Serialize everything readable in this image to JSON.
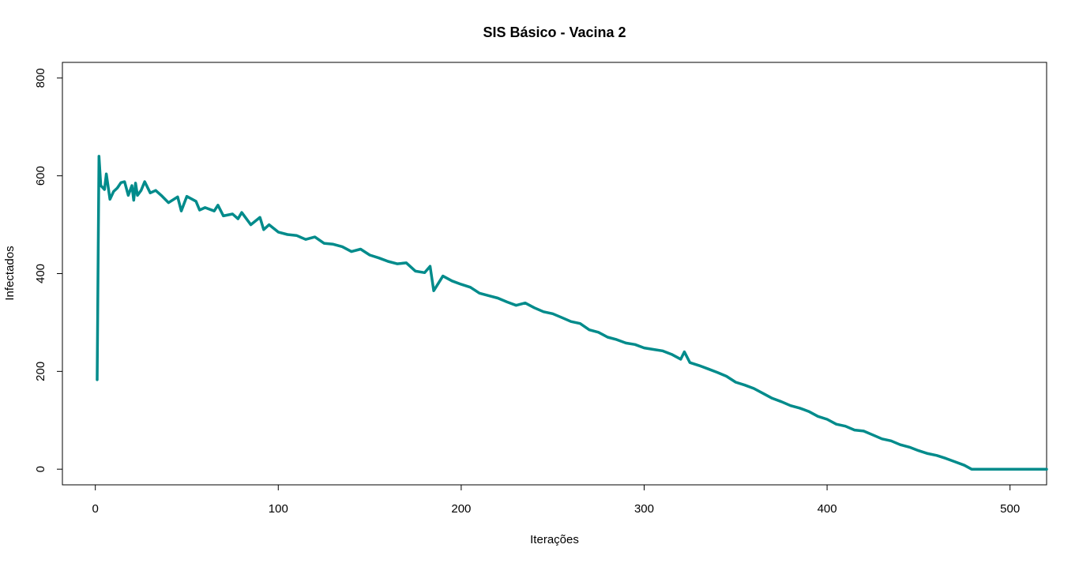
{
  "chart_data": {
    "type": "line",
    "title": "SIS Básico - Vacina 2",
    "xlabel": "Iterações",
    "ylabel": "Infectados",
    "xlim": [
      -18,
      520
    ],
    "ylim": [
      -32,
      832
    ],
    "x_ticks": [
      0,
      100,
      200,
      300,
      400,
      500
    ],
    "y_ticks": [
      0,
      200,
      400,
      600,
      800
    ],
    "grid": false,
    "legend": "none",
    "series": [
      {
        "color": "#008B8B",
        "points": [
          [
            1,
            183
          ],
          [
            2,
            640
          ],
          [
            3,
            580
          ],
          [
            5,
            572
          ],
          [
            6,
            604
          ],
          [
            8,
            552
          ],
          [
            10,
            568
          ],
          [
            12,
            575
          ],
          [
            14,
            586
          ],
          [
            16,
            588
          ],
          [
            18,
            560
          ],
          [
            20,
            580
          ],
          [
            21,
            550
          ],
          [
            22,
            585
          ],
          [
            23,
            560
          ],
          [
            25,
            570
          ],
          [
            27,
            588
          ],
          [
            30,
            565
          ],
          [
            33,
            570
          ],
          [
            36,
            560
          ],
          [
            40,
            545
          ],
          [
            45,
            557
          ],
          [
            47,
            528
          ],
          [
            50,
            558
          ],
          [
            55,
            548
          ],
          [
            57,
            530
          ],
          [
            60,
            535
          ],
          [
            65,
            528
          ],
          [
            67,
            540
          ],
          [
            70,
            518
          ],
          [
            75,
            522
          ],
          [
            78,
            512
          ],
          [
            80,
            525
          ],
          [
            85,
            500
          ],
          [
            90,
            515
          ],
          [
            92,
            490
          ],
          [
            95,
            500
          ],
          [
            100,
            485
          ],
          [
            105,
            480
          ],
          [
            110,
            478
          ],
          [
            115,
            470
          ],
          [
            120,
            475
          ],
          [
            125,
            462
          ],
          [
            130,
            460
          ],
          [
            135,
            455
          ],
          [
            140,
            445
          ],
          [
            145,
            450
          ],
          [
            150,
            438
          ],
          [
            155,
            432
          ],
          [
            160,
            425
          ],
          [
            165,
            420
          ],
          [
            170,
            422
          ],
          [
            175,
            405
          ],
          [
            180,
            402
          ],
          [
            183,
            415
          ],
          [
            185,
            365
          ],
          [
            190,
            395
          ],
          [
            195,
            385
          ],
          [
            200,
            378
          ],
          [
            205,
            372
          ],
          [
            210,
            360
          ],
          [
            215,
            355
          ],
          [
            220,
            350
          ],
          [
            225,
            342
          ],
          [
            230,
            335
          ],
          [
            235,
            340
          ],
          [
            240,
            330
          ],
          [
            245,
            322
          ],
          [
            250,
            318
          ],
          [
            255,
            310
          ],
          [
            260,
            302
          ],
          [
            265,
            298
          ],
          [
            270,
            285
          ],
          [
            275,
            280
          ],
          [
            280,
            270
          ],
          [
            285,
            265
          ],
          [
            290,
            258
          ],
          [
            295,
            255
          ],
          [
            300,
            248
          ],
          [
            305,
            245
          ],
          [
            310,
            242
          ],
          [
            315,
            235
          ],
          [
            320,
            225
          ],
          [
            322,
            240
          ],
          [
            325,
            218
          ],
          [
            330,
            212
          ],
          [
            335,
            205
          ],
          [
            340,
            198
          ],
          [
            345,
            190
          ],
          [
            350,
            178
          ],
          [
            355,
            172
          ],
          [
            360,
            165
          ],
          [
            365,
            155
          ],
          [
            370,
            145
          ],
          [
            375,
            138
          ],
          [
            380,
            130
          ],
          [
            385,
            125
          ],
          [
            390,
            118
          ],
          [
            395,
            108
          ],
          [
            400,
            102
          ],
          [
            405,
            92
          ],
          [
            410,
            88
          ],
          [
            415,
            80
          ],
          [
            420,
            78
          ],
          [
            425,
            70
          ],
          [
            430,
            62
          ],
          [
            435,
            58
          ],
          [
            440,
            50
          ],
          [
            445,
            45
          ],
          [
            450,
            38
          ],
          [
            455,
            32
          ],
          [
            460,
            28
          ],
          [
            465,
            22
          ],
          [
            470,
            15
          ],
          [
            475,
            8
          ],
          [
            477,
            4
          ],
          [
            479,
            0
          ],
          [
            500,
            0
          ],
          [
            520,
            0
          ]
        ]
      }
    ]
  }
}
